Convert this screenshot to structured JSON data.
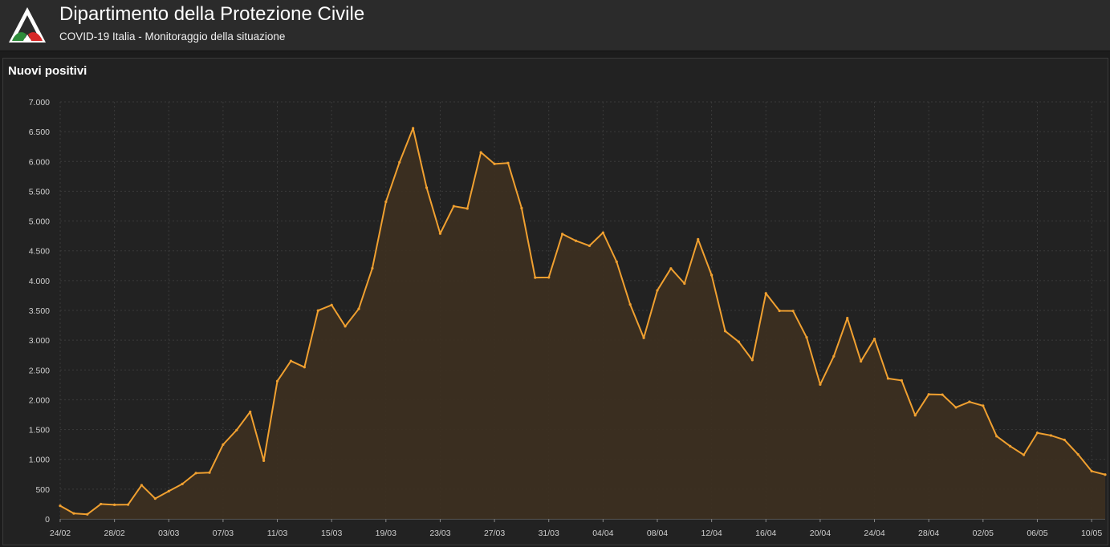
{
  "header": {
    "title": "Dipartimento della Protezione Civile",
    "subtitle": "COVID-19 Italia - Monitoraggio della situazione",
    "logo_icon": "protezione-civile-logo-icon"
  },
  "colors": {
    "line": "#f0a030",
    "area": "#3d3020",
    "grid": "#3b3b3b",
    "logo_green": "#2e8b3a",
    "logo_red": "#d62828"
  },
  "chart_data": {
    "type": "area",
    "title": "Nuovi positivi",
    "xlabel": "",
    "ylabel": "",
    "ylim": [
      0,
      7000
    ],
    "yticks": [
      0,
      500,
      1000,
      1500,
      2000,
      2500,
      3000,
      3500,
      4000,
      4500,
      5000,
      5500,
      6000,
      6500,
      7000
    ],
    "ytick_labels": [
      "0",
      "500",
      "1.000",
      "1.500",
      "2.000",
      "2.500",
      "3.000",
      "3.500",
      "4.000",
      "4.500",
      "5.000",
      "5.500",
      "6.000",
      "6.500",
      "7.000"
    ],
    "xtick_labels": [
      "24/02",
      "28/02",
      "03/03",
      "07/03",
      "11/03",
      "15/03",
      "19/03",
      "23/03",
      "27/03",
      "31/03",
      "04/04",
      "08/04",
      "12/04",
      "16/04",
      "20/04",
      "24/04",
      "28/04",
      "02/05",
      "06/05",
      "10/05"
    ],
    "grid": true,
    "legend": "none",
    "series": [
      {
        "name": "",
        "values": [
          221,
          93,
          78,
          250,
          238,
          240,
          566,
          342,
          466,
          587,
          769,
          778,
          1247,
          1492,
          1797,
          977,
          2313,
          2651,
          2547,
          3497,
          3590,
          3233,
          3526,
          4207,
          5322,
          5986,
          6557,
          5560,
          4789,
          5249,
          5210,
          6153,
          5959,
          5974,
          5217,
          4050,
          4053,
          4782,
          4668,
          4585,
          4805,
          4316,
          3599,
          3039,
          3836,
          4204,
          3951,
          4694,
          4092,
          3153,
          2972,
          2667,
          3786,
          3493,
          3491,
          3047,
          2256,
          2729,
          3370,
          2646,
          3021,
          2357,
          2324,
          1739,
          2091,
          2086,
          1872,
          1965,
          1900,
          1389,
          1221,
          1075,
          1444,
          1401,
          1327,
          1083,
          802,
          744
        ]
      }
    ]
  }
}
